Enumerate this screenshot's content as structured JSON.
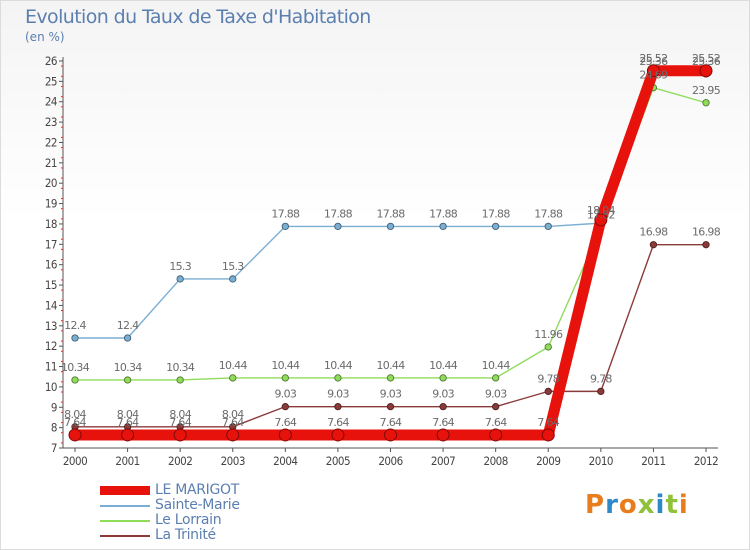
{
  "chart_data": {
    "type": "line",
    "title": "Evolution du Taux de Taxe d'Habitation",
    "unit_label": "(en %)",
    "xlabel": "",
    "ylabel": "",
    "x": [
      "2000",
      "2001",
      "2002",
      "2003",
      "2004",
      "2005",
      "2006",
      "2007",
      "2008",
      "2009",
      "2010",
      "2011",
      "2012"
    ],
    "ylim": [
      7,
      26
    ],
    "yticks": [
      7,
      8,
      9,
      10,
      11,
      12,
      13,
      14,
      15,
      16,
      17,
      18,
      19,
      20,
      21,
      22,
      23,
      24,
      25,
      26
    ],
    "grid": false,
    "legend_position": "bottom-left",
    "series": [
      {
        "name": "LE MARIGOT",
        "color": "#e8120c",
        "values": [
          7.64,
          7.64,
          7.64,
          7.64,
          7.64,
          7.64,
          7.64,
          7.64,
          7.64,
          7.64,
          18.2,
          25.52,
          25.52
        ],
        "labels": [
          "7.64",
          "7.64",
          "7.64",
          "7.64",
          "7.64",
          "7.64",
          "7.64",
          "7.64",
          "7.64",
          "7.64",
          "",
          "25.52",
          "25.52"
        ]
      },
      {
        "name": "Sainte-Marie",
        "color": "#7aaed3",
        "values": [
          12.4,
          12.4,
          15.3,
          15.3,
          17.88,
          17.88,
          17.88,
          17.88,
          17.88,
          17.88,
          18.04,
          25.36,
          25.36
        ],
        "labels": [
          "12.4",
          "12.4",
          "15.3",
          "15.3",
          "17.88",
          "17.88",
          "17.88",
          "17.88",
          "17.88",
          "17.88",
          "18.04",
          "25.36",
          "25.36"
        ]
      },
      {
        "name": "Le Lorrain",
        "color": "#8fdb5a",
        "values": [
          10.34,
          10.34,
          10.34,
          10.44,
          10.44,
          10.44,
          10.44,
          10.44,
          10.44,
          11.96,
          17.82,
          24.69,
          23.95
        ],
        "labels": [
          "10.34",
          "10.34",
          "10.34",
          "10.44",
          "10.44",
          "10.44",
          "10.44",
          "10.44",
          "10.44",
          "11.96",
          "17.82",
          "24.69",
          "23.95"
        ]
      },
      {
        "name": "La Trinité",
        "color": "#8b3a3a",
        "values": [
          8.04,
          8.04,
          8.04,
          8.04,
          9.03,
          9.03,
          9.03,
          9.03,
          9.03,
          9.78,
          9.78,
          16.98,
          16.98
        ],
        "labels": [
          "8.04",
          "8.04",
          "8.04",
          "8.04",
          "9.03",
          "9.03",
          "9.03",
          "9.03",
          "9.03",
          "9.78",
          "9.78",
          "16.98",
          "16.98"
        ]
      }
    ]
  },
  "logo": {
    "text": "Proxiti",
    "colors": [
      "#e87d1e",
      "#2f88c8",
      "#e87d1e",
      "#8fc23a",
      "#2f88c8",
      "#8fc23a",
      "#e87d1e"
    ]
  }
}
